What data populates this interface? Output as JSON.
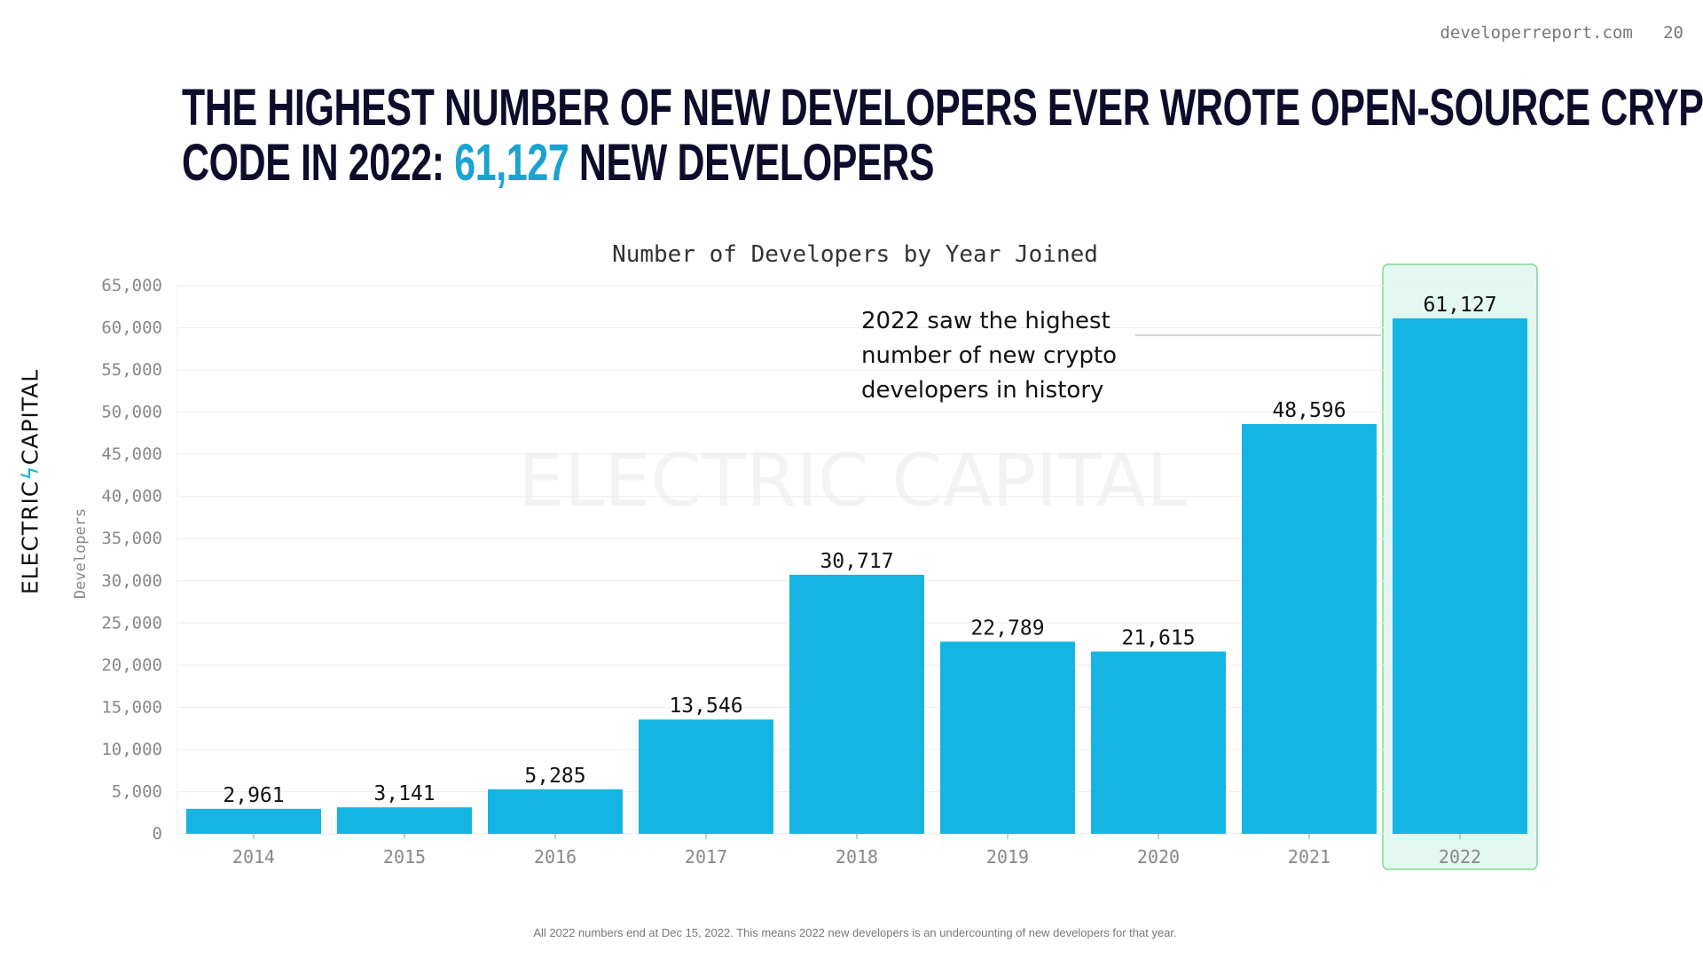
{
  "header": {
    "site": "developerreport.com",
    "page_number": "20"
  },
  "title": {
    "line1": "THE HIGHEST NUMBER OF NEW DEVELOPERS EVER WROTE OPEN-SOURCE CRYPTO",
    "line2_prefix": "CODE IN 2022: ",
    "line2_highlight": "61,127",
    "line2_suffix": " NEW DEVELOPERS"
  },
  "logo": {
    "text_left": "ELECTRIC",
    "text_right": "CAPITAL",
    "watermark": "ELECTRIC CAPITAL"
  },
  "annotation": {
    "lines": [
      "2022 saw the highest",
      "number of new crypto",
      "developers in history"
    ]
  },
  "footnote": "All 2022 numbers end at Dec 15, 2022. This means 2022 new developers is an undercounting of new developers for that year.",
  "colors": {
    "bar": "#14b5e2",
    "highlight_fill": "#e2f8f0",
    "highlight_border": "#82d996",
    "accent": "#1aa3d1"
  },
  "chart_data": {
    "type": "bar",
    "title": "Number of Developers by Year Joined",
    "xlabel": "",
    "ylabel": "Developers",
    "categories": [
      "2014",
      "2015",
      "2016",
      "2017",
      "2018",
      "2019",
      "2020",
      "2021",
      "2022"
    ],
    "values": [
      2961,
      3141,
      5285,
      13546,
      30717,
      22789,
      21615,
      48596,
      61127
    ],
    "value_labels": [
      "2,961",
      "3,141",
      "5,285",
      "13,546",
      "30,717",
      "22,789",
      "21,615",
      "48,596",
      "61,127"
    ],
    "ylim": [
      0,
      65000
    ],
    "yticks": [
      0,
      5000,
      10000,
      15000,
      20000,
      25000,
      30000,
      35000,
      40000,
      45000,
      50000,
      55000,
      60000,
      65000
    ],
    "ytick_labels": [
      "0",
      "5,000",
      "10,000",
      "15,000",
      "20,000",
      "25,000",
      "30,000",
      "35,000",
      "40,000",
      "45,000",
      "50,000",
      "55,000",
      "60,000",
      "65,000"
    ],
    "grid": true,
    "highlighted_category": "2022"
  }
}
